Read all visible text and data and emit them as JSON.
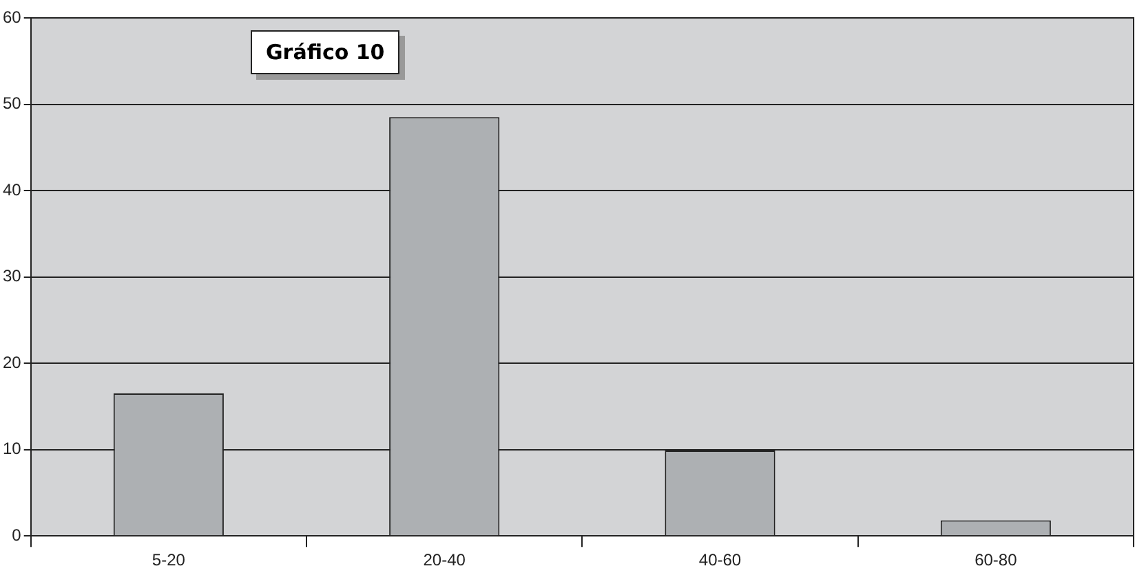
{
  "chart_data": {
    "type": "bar",
    "title": "Gráfico 10",
    "categories": [
      "5-20",
      "20-40",
      "40-60",
      "60-80"
    ],
    "values": [
      16.5,
      48.5,
      9.9,
      1.8
    ],
    "color": "#adb0b3",
    "ylim": [
      0,
      60
    ],
    "yticks": [
      0,
      10,
      20,
      30,
      40,
      50,
      60
    ],
    "grid": "y"
  }
}
